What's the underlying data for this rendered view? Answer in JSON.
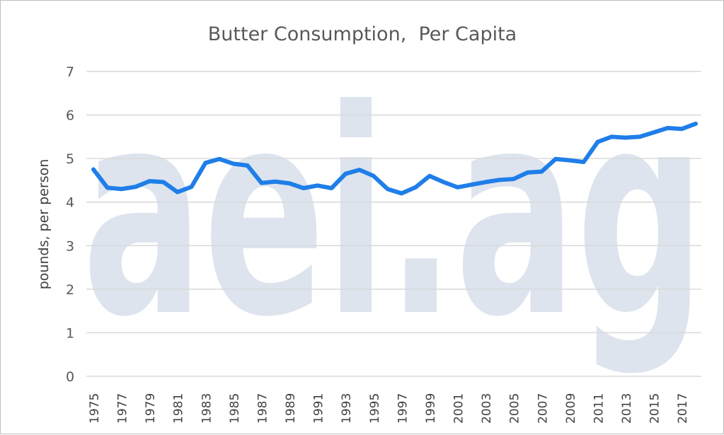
{
  "chart_data": {
    "type": "line",
    "title": "Butter Consumption,  Per Capita",
    "xlabel": "",
    "ylabel": "pounds, per person",
    "watermark": "aei.ag",
    "ylim": [
      0,
      7
    ],
    "yticks": [
      0,
      1,
      2,
      3,
      4,
      5,
      6,
      7
    ],
    "xlim": [
      1975,
      2018
    ],
    "xticks": [
      1975,
      1977,
      1979,
      1981,
      1983,
      1985,
      1987,
      1989,
      1991,
      1993,
      1995,
      1997,
      1999,
      2001,
      2003,
      2005,
      2007,
      2009,
      2011,
      2013,
      2015,
      2017
    ],
    "grid": true,
    "legend": "none",
    "line_color": "#1f7ee8",
    "x": [
      1975,
      1976,
      1977,
      1978,
      1979,
      1980,
      1981,
      1982,
      1983,
      1984,
      1985,
      1986,
      1987,
      1988,
      1989,
      1990,
      1991,
      1992,
      1993,
      1994,
      1995,
      1996,
      1997,
      1998,
      1999,
      2000,
      2001,
      2002,
      2003,
      2004,
      2005,
      2006,
      2007,
      2008,
      2009,
      2010,
      2011,
      2012,
      2013,
      2014,
      2015,
      2016,
      2017,
      2018
    ],
    "series": [
      {
        "values": [
          4.75,
          4.33,
          4.3,
          4.35,
          4.48,
          4.46,
          4.23,
          4.35,
          4.9,
          4.99,
          4.88,
          4.84,
          4.44,
          4.47,
          4.43,
          4.32,
          4.38,
          4.32,
          4.65,
          4.74,
          4.6,
          4.3,
          4.2,
          4.34,
          4.6,
          4.46,
          4.34,
          4.4,
          4.46,
          4.51,
          4.53,
          4.68,
          4.7,
          4.99,
          4.96,
          4.92,
          5.38,
          5.5,
          5.48,
          5.5,
          5.6,
          5.7,
          5.68,
          5.8
        ]
      }
    ]
  }
}
